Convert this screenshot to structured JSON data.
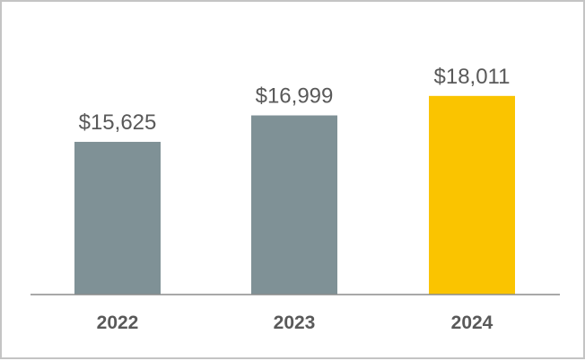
{
  "chart_data": {
    "type": "bar",
    "categories": [
      "2022",
      "2023",
      "2024"
    ],
    "values": [
      15625,
      16999,
      18011
    ],
    "value_labels": [
      "$15,625",
      "$16,999",
      "$18,011"
    ],
    "bar_colors": [
      "#7f9196",
      "#7f9196",
      "#fac400"
    ],
    "axis_color": "#8c8c8c",
    "grid": false,
    "legend": "none"
  }
}
